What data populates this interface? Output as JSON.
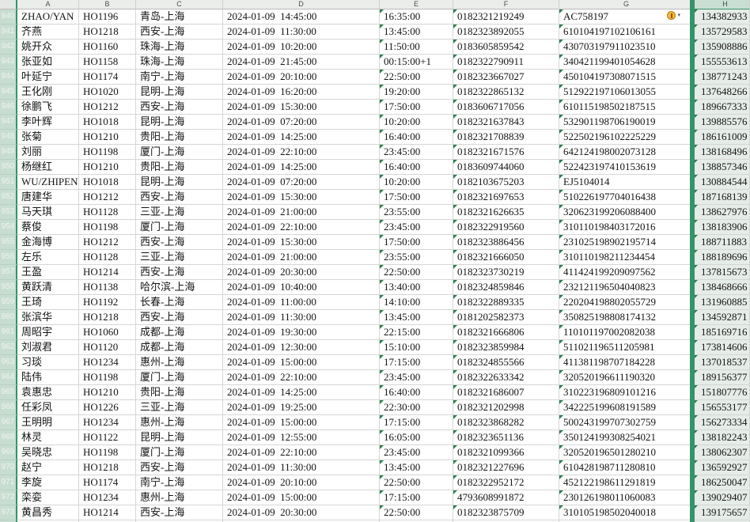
{
  "sheet": {
    "selected_column": "H",
    "columns": [
      "A",
      "B",
      "C",
      "D",
      "E",
      "F",
      "G",
      "H"
    ],
    "column_fields": [
      "name",
      "flight",
      "route",
      "departure",
      "arrival",
      "ticket_no",
      "id_no",
      "phone"
    ],
    "text_flag_columns": [
      "arrival",
      "ticket_no",
      "id_no",
      "phone"
    ],
    "error_button": {
      "cell": "G940",
      "icon": "error-checking-button",
      "caret": "▾"
    },
    "colors": {
      "selection_green": "#35926a",
      "row_header_bg": "#c8ddd1",
      "selected_cell_bg": "#e6ece7",
      "triangle": "#2e7d4f",
      "warning_fill": "#f5b73d"
    },
    "rows": [
      {
        "n": "940",
        "name": "ZHAO/YAN",
        "flight": "HO1196",
        "route": "青岛-上海",
        "departure": "2024-01-09  14:45:00",
        "arrival": "16:35:00",
        "ticket_no": "0182321219249",
        "id_no": "AC758197",
        "phone": "134382933",
        "warning": true
      },
      {
        "n": "941",
        "name": "齐燕",
        "flight": "HO1218",
        "route": "西安-上海",
        "departure": "2024-01-09  11:30:00",
        "arrival": "13:45:00",
        "ticket_no": "0182323892055",
        "id_no": "610104197102106161",
        "phone": "135729583"
      },
      {
        "n": "942",
        "name": "姚开众",
        "flight": "HO1160",
        "route": "珠海-上海",
        "departure": "2024-01-09  10:20:00",
        "arrival": "11:50:00",
        "ticket_no": "0183605859542",
        "id_no": "430703197911023510",
        "phone": "135908886"
      },
      {
        "n": "943",
        "name": "张亚如",
        "flight": "HO1158",
        "route": "珠海-上海",
        "departure": "2024-01-09  21:45:00",
        "arrival": "00:15:00+1",
        "ticket_no": "0182322790911",
        "id_no": "340421199401054628",
        "phone": "155553613"
      },
      {
        "n": "944",
        "name": "叶延宁",
        "flight": "HO1174",
        "route": "南宁-上海",
        "departure": "2024-01-09  20:10:00",
        "arrival": "22:50:00",
        "ticket_no": "0182323667027",
        "id_no": "450104197308071515",
        "phone": "138771243"
      },
      {
        "n": "945",
        "name": "王化刚",
        "flight": "HO1020",
        "route": "昆明-上海",
        "departure": "2024-01-09  16:20:00",
        "arrival": "19:20:00",
        "ticket_no": "0182322865132",
        "id_no": "512922197106013055",
        "phone": "137648266"
      },
      {
        "n": "946",
        "name": "徐鹏飞",
        "flight": "HO1212",
        "route": "西安-上海",
        "departure": "2024-01-09  15:30:00",
        "arrival": "17:50:00",
        "ticket_no": "0183606717056",
        "id_no": "610115198502187515",
        "phone": "189667333"
      },
      {
        "n": "947",
        "name": "李叶辉",
        "flight": "HO1018",
        "route": "昆明-上海",
        "departure": "2024-01-09  07:20:00",
        "arrival": "10:20:00",
        "ticket_no": "0182321637843",
        "id_no": "532901198706190019",
        "phone": "139885576"
      },
      {
        "n": "948",
        "name": "张菊",
        "flight": "HO1210",
        "route": "贵阳-上海",
        "departure": "2024-01-09  14:25:00",
        "arrival": "16:40:00",
        "ticket_no": "0182321708839",
        "id_no": "522502196102225229",
        "phone": "186161009"
      },
      {
        "n": "949",
        "name": "刘丽",
        "flight": "HO1198",
        "route": "厦门-上海",
        "departure": "2024-01-09  22:10:00",
        "arrival": "23:45:00",
        "ticket_no": "0182321671576",
        "id_no": "642124198002073128",
        "phone": "138168496"
      },
      {
        "n": "950",
        "name": "杨继红",
        "flight": "HO1210",
        "route": "贵阳-上海",
        "departure": "2024-01-09  14:25:00",
        "arrival": "16:40:00",
        "ticket_no": "0183609744060",
        "id_no": "522423197410153619",
        "phone": "138857346"
      },
      {
        "n": "951",
        "name": "WU/ZHIPEN",
        "flight": "HO1018",
        "route": "昆明-上海",
        "departure": "2024-01-09  07:20:00",
        "arrival": "10:20:00",
        "ticket_no": "0182103675203",
        "id_no": "EJ5104014",
        "phone": "130884544"
      },
      {
        "n": "952",
        "name": "唐建华",
        "flight": "HO1212",
        "route": "西安-上海",
        "departure": "2024-01-09  15:30:00",
        "arrival": "17:50:00",
        "ticket_no": "0182321697653",
        "id_no": "510226197704016438",
        "phone": "187168139"
      },
      {
        "n": "953",
        "name": "马天琪",
        "flight": "HO1128",
        "route": "三亚-上海",
        "departure": "2024-01-09  21:00:00",
        "arrival": "23:55:00",
        "ticket_no": "0182321626635",
        "id_no": "320623199206088400",
        "phone": "138627976"
      },
      {
        "n": "954",
        "name": "蔡俊",
        "flight": "HO1198",
        "route": "厦门-上海",
        "departure": "2024-01-09  22:10:00",
        "arrival": "23:45:00",
        "ticket_no": "0182322919560",
        "id_no": "310110198403172016",
        "phone": "138183906"
      },
      {
        "n": "955",
        "name": "金海博",
        "flight": "HO1212",
        "route": "西安-上海",
        "departure": "2024-01-09  15:30:00",
        "arrival": "17:50:00",
        "ticket_no": "0182323886456",
        "id_no": "231025198902195714",
        "phone": "188711883"
      },
      {
        "n": "956",
        "name": "左乐",
        "flight": "HO1128",
        "route": "三亚-上海",
        "departure": "2024-01-09  21:00:00",
        "arrival": "23:55:00",
        "ticket_no": "0182321666050",
        "id_no": "310110198211234454",
        "phone": "188189696"
      },
      {
        "n": "957",
        "name": "王盈",
        "flight": "HO1214",
        "route": "西安-上海",
        "departure": "2024-01-09  20:30:00",
        "arrival": "22:50:00",
        "ticket_no": "0182323730219",
        "id_no": "411424199209097562",
        "phone": "137815673"
      },
      {
        "n": "958",
        "name": "黄跃清",
        "flight": "HO1138",
        "route": "哈尔滨-上海",
        "departure": "2024-01-09  10:40:00",
        "arrival": "13:40:00",
        "ticket_no": "0182324859846",
        "id_no": "232121196504040823",
        "phone": "138468666"
      },
      {
        "n": "959",
        "name": "王琦",
        "flight": "HO1192",
        "route": "长春-上海",
        "departure": "2024-01-09  11:00:00",
        "arrival": "14:10:00",
        "ticket_no": "0182322889335",
        "id_no": "220204198802055729",
        "phone": "131960885"
      },
      {
        "n": "960",
        "name": "张滨华",
        "flight": "HO1218",
        "route": "西安-上海",
        "departure": "2024-01-09  11:30:00",
        "arrival": "13:45:00",
        "ticket_no": "0181202582373",
        "id_no": "350825198808174132",
        "phone": "134592871"
      },
      {
        "n": "961",
        "name": "周昭宇",
        "flight": "HO1060",
        "route": "成都-上海",
        "departure": "2024-01-09  19:30:00",
        "arrival": "22:15:00",
        "ticket_no": "0182321666806",
        "id_no": "110101197002082038",
        "phone": "185169716"
      },
      {
        "n": "962",
        "name": "刘淑君",
        "flight": "HO1120",
        "route": "成都-上海",
        "departure": "2024-01-09  12:30:00",
        "arrival": "15:10:00",
        "ticket_no": "0182323859984",
        "id_no": "511021196511205981",
        "phone": "173814606"
      },
      {
        "n": "963",
        "name": "习琰",
        "flight": "HO1234",
        "route": "惠州-上海",
        "departure": "2024-01-09  15:00:00",
        "arrival": "17:15:00",
        "ticket_no": "0182324855566",
        "id_no": "411381198707184228",
        "phone": "137018537"
      },
      {
        "n": "964",
        "name": "陆伟",
        "flight": "HO1198",
        "route": "厦门-上海",
        "departure": "2024-01-09  22:10:00",
        "arrival": "23:45:00",
        "ticket_no": "0182322633342",
        "id_no": "320520196611190320",
        "phone": "189156377"
      },
      {
        "n": "965",
        "name": "袁惠忠",
        "flight": "HO1210",
        "route": "贵阳-上海",
        "departure": "2024-01-09  14:25:00",
        "arrival": "16:40:00",
        "ticket_no": "0182321686007",
        "id_no": "310223196809101216",
        "phone": "151807776"
      },
      {
        "n": "966",
        "name": "任彩凤",
        "flight": "HO1226",
        "route": "三亚-上海",
        "departure": "2024-01-09  19:25:00",
        "arrival": "22:30:00",
        "ticket_no": "0182321202998",
        "id_no": "342225199608191589",
        "phone": "156553177"
      },
      {
        "n": "967",
        "name": "王明明",
        "flight": "HO1234",
        "route": "惠州-上海",
        "departure": "2024-01-09  15:00:00",
        "arrival": "17:15:00",
        "ticket_no": "0182323868282",
        "id_no": "500243199707302759",
        "phone": "156273334"
      },
      {
        "n": "968",
        "name": "林灵",
        "flight": "HO1122",
        "route": "昆明-上海",
        "departure": "2024-01-09  12:55:00",
        "arrival": "16:05:00",
        "ticket_no": "0182323651136",
        "id_no": "350124199308254021",
        "phone": "138182243"
      },
      {
        "n": "969",
        "name": "吴晓忠",
        "flight": "HO1198",
        "route": "厦门-上海",
        "departure": "2024-01-09  22:10:00",
        "arrival": "23:45:00",
        "ticket_no": "0182321099366",
        "id_no": "320520196501280210",
        "phone": "138062307"
      },
      {
        "n": "970",
        "name": "赵宁",
        "flight": "HO1218",
        "route": "西安-上海",
        "departure": "2024-01-09  11:30:00",
        "arrival": "13:45:00",
        "ticket_no": "0182321227696",
        "id_no": "610428198711280810",
        "phone": "136592927"
      },
      {
        "n": "971",
        "name": "李旋",
        "flight": "HO1174",
        "route": "南宁-上海",
        "departure": "2024-01-09  20:10:00",
        "arrival": "22:50:00",
        "ticket_no": "0182322952172",
        "id_no": "452122198611291819",
        "phone": "186250047"
      },
      {
        "n": "972",
        "name": "栾娈",
        "flight": "HO1234",
        "route": "惠州-上海",
        "departure": "2024-01-09  15:00:00",
        "arrival": "17:15:00",
        "ticket_no": "4793608991872",
        "id_no": "230126198011060083",
        "phone": "139029407"
      },
      {
        "n": "973",
        "name": "黄昌秀",
        "flight": "HO1214",
        "route": "西安-上海",
        "departure": "2024-01-09  20:30:00",
        "arrival": "22:50:00",
        "ticket_no": "0182323875709",
        "id_no": "310105198502040018",
        "phone": "139175657"
      },
      {
        "n": "974",
        "name": "",
        "flight": "",
        "route": "",
        "departure": "",
        "arrival": "",
        "ticket_no": "",
        "id_no": "",
        "phone": ""
      }
    ]
  }
}
